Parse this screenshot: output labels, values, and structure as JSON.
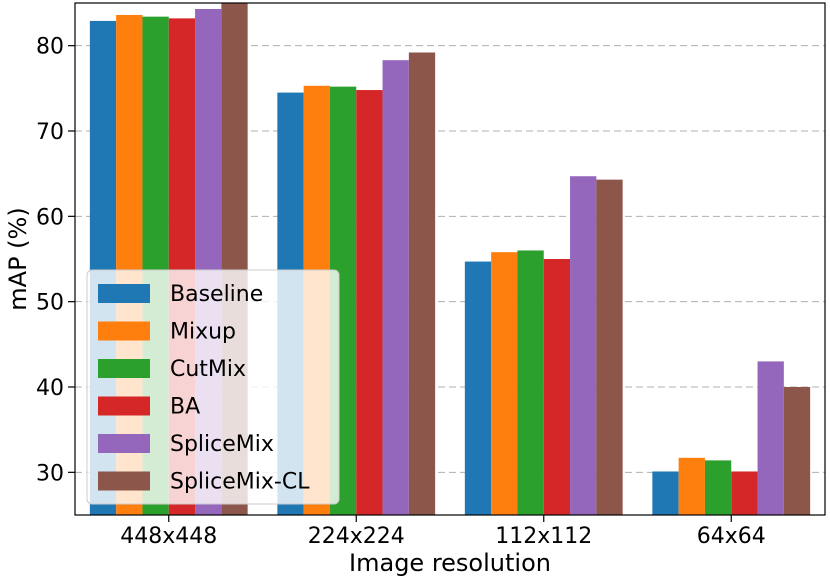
{
  "chart_data": {
    "type": "bar",
    "xlabel": "Image resolution",
    "ylabel": "mAP (%)",
    "ylim": [
      25,
      85
    ],
    "yticks": [
      30,
      40,
      50,
      60,
      70,
      80
    ],
    "grid": "horizontal dashed",
    "legend_position": "lower-left",
    "categories": [
      "448x448",
      "224x224",
      "112x112",
      "64x64"
    ],
    "series": [
      {
        "name": "Baseline",
        "color": "#1f77b4",
        "values": [
          82.9,
          74.5,
          54.7,
          30.1
        ]
      },
      {
        "name": "Mixup",
        "color": "#ff7f0e",
        "values": [
          83.6,
          75.3,
          55.8,
          31.7
        ]
      },
      {
        "name": "CutMix",
        "color": "#2ca02c",
        "values": [
          83.4,
          75.2,
          56.0,
          31.4
        ]
      },
      {
        "name": "BA",
        "color": "#d62728",
        "values": [
          83.2,
          74.8,
          55.0,
          30.1
        ]
      },
      {
        "name": "SpliceMix",
        "color": "#9467bd",
        "values": [
          84.3,
          78.3,
          64.7,
          43.0
        ]
      },
      {
        "name": "SpliceMix-CL",
        "color": "#8c564b",
        "values": [
          85.0,
          79.2,
          64.3,
          40.0
        ]
      }
    ]
  }
}
